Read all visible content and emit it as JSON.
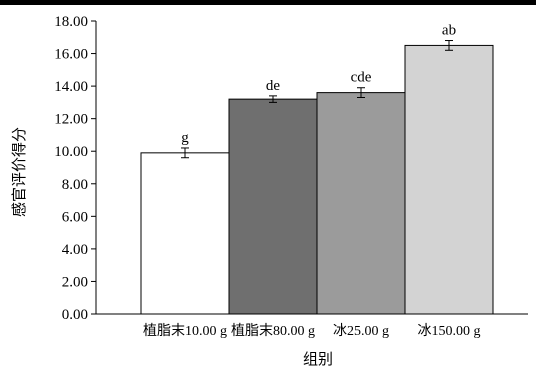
{
  "chart_data": {
    "type": "bar",
    "categories": [
      "植脂末10.00 g",
      "植脂末80.00 g",
      "冰25.00 g",
      "冰150.00 g"
    ],
    "values": [
      9.9,
      13.2,
      13.6,
      16.5
    ],
    "error": [
      0.3,
      0.2,
      0.3,
      0.3
    ],
    "letters": [
      "g",
      "de",
      "cde",
      "ab"
    ],
    "colors": [
      "#ffffff",
      "#6f6f6f",
      "#9b9b9b",
      "#d3d3d3"
    ],
    "xlabel": "组别",
    "ylabel": "感官评价得分",
    "ylim": [
      0,
      18
    ],
    "yticks": [
      "0.00",
      "2.00",
      "4.00",
      "6.00",
      "8.00",
      "10.00",
      "12.00",
      "14.00",
      "16.00",
      "18.00"
    ],
    "grid": false,
    "legend": "none"
  }
}
